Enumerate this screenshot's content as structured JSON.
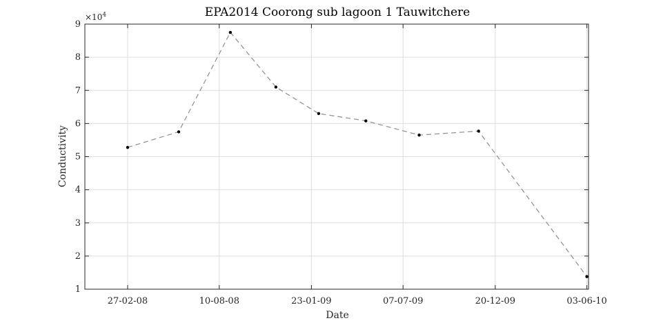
{
  "chart_data": {
    "type": "line",
    "title": "EPA2014 Coorong sub lagoon 1 Tauwitchere",
    "xlabel": "Date",
    "ylabel": "Conductivity",
    "y_exponent_label": "×10",
    "y_exponent_power": "4",
    "x_ticks": [
      "27-02-08",
      "10-08-08",
      "23-01-09",
      "07-07-09",
      "20-12-09",
      "03-06-10"
    ],
    "xlim": [
      "2007-12-12",
      "2010-06-06"
    ],
    "y_ticks": [
      "1",
      "2",
      "3",
      "4",
      "5",
      "6",
      "7",
      "8",
      "9"
    ],
    "ylim": [
      10000,
      90000
    ],
    "grid": true,
    "line_style": "dashed",
    "line_color": "#8c8c8c",
    "marker_color": "#000000",
    "series": [
      {
        "x": [
          "2008-02-27",
          "2008-05-29",
          "2008-08-30",
          "2008-11-20",
          "2009-02-05",
          "2009-05-01",
          "2009-08-05",
          "2009-11-20",
          "2010-06-03"
        ],
        "values": [
          52800,
          57500,
          87500,
          71000,
          63000,
          60800,
          56500,
          57700,
          13800
        ]
      }
    ]
  }
}
